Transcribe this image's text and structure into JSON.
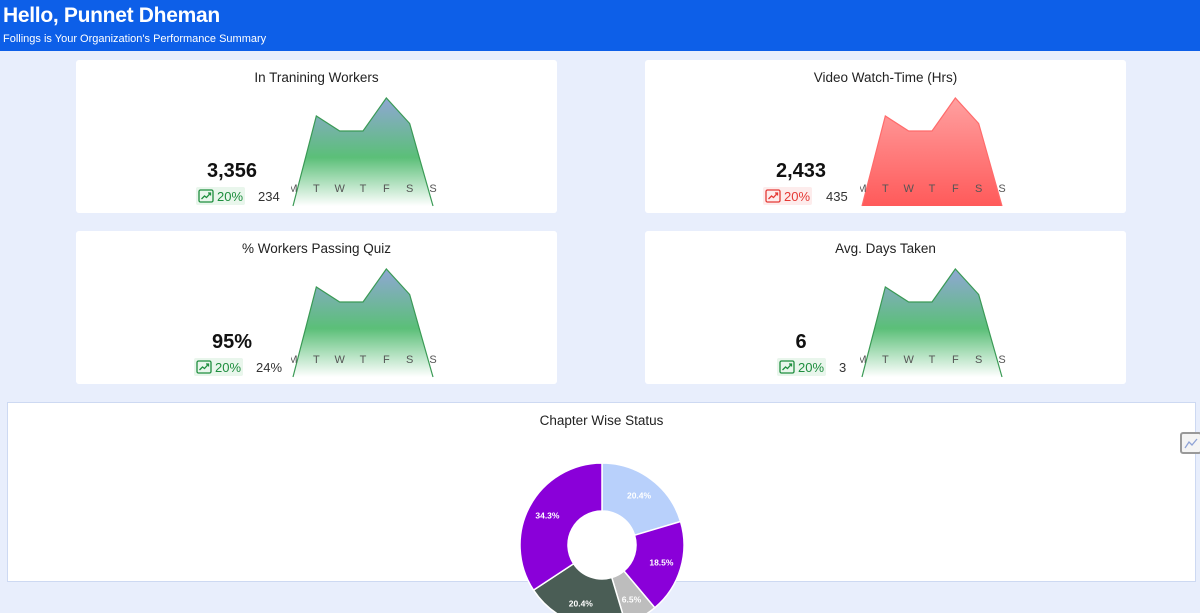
{
  "header": {
    "title": "Hello, Punnet Dheman",
    "subtitle": "Follings is Your Organization's Performance Summary"
  },
  "days": [
    "M",
    "T",
    "W",
    "T",
    "F",
    "S",
    "S"
  ],
  "cards": [
    {
      "title": "In Tranining Workers",
      "value": "3,356",
      "trend": "20%",
      "trend_direction": "up",
      "previous": "234",
      "chart_color": "green",
      "chart_data": {
        "type": "area",
        "x": [
          "M",
          "T",
          "W",
          "T",
          "F",
          "S",
          "S"
        ],
        "values": [
          0,
          60,
          50,
          50,
          72,
          55,
          0
        ]
      }
    },
    {
      "title": "Video Watch-Time (Hrs)",
      "value": "2,433",
      "trend": "20%",
      "trend_direction": "down",
      "previous": "435",
      "chart_color": "red",
      "chart_data": {
        "type": "area",
        "x": [
          "M",
          "T",
          "W",
          "T",
          "F",
          "S",
          "S"
        ],
        "values": [
          0,
          60,
          50,
          50,
          72,
          55,
          0
        ]
      }
    },
    {
      "title": "% Workers Passing Quiz",
      "value": "95%",
      "trend": "20%",
      "trend_direction": "up",
      "previous": "24%",
      "chart_color": "green",
      "chart_data": {
        "type": "area",
        "x": [
          "M",
          "T",
          "W",
          "T",
          "F",
          "S",
          "S"
        ],
        "values": [
          0,
          60,
          50,
          50,
          72,
          55,
          0
        ]
      }
    },
    {
      "title": "Avg. Days Taken",
      "value": "6",
      "trend": "20%",
      "trend_direction": "up",
      "previous": "3",
      "chart_color": "green",
      "chart_data": {
        "type": "area",
        "x": [
          "M",
          "T",
          "W",
          "T",
          "F",
          "S",
          "S"
        ],
        "values": [
          0,
          60,
          50,
          50,
          72,
          55,
          0
        ]
      }
    }
  ],
  "chapter_status": {
    "title": "Chapter Wise Status",
    "chart_data": {
      "type": "pie",
      "slices": [
        {
          "label": "20.4%",
          "value": 20.4,
          "color": "#b8d0fb"
        },
        {
          "label": "18.5%",
          "value": 18.5,
          "color": "#8a00d9"
        },
        {
          "label": "6.5%",
          "value": 6.5,
          "color": "#bdbdbd"
        },
        {
          "label": "20.4%",
          "value": 20.4,
          "color": "#4a5d55"
        },
        {
          "label": "34.3%",
          "value": 34.3,
          "color": "#8a00d9"
        }
      ]
    }
  },
  "colors": {
    "header_bg": "#0d5fe8",
    "page_bg": "#e8eefc",
    "up": "#1e8e3e",
    "down": "#e53935"
  },
  "icons": {
    "trend": "trending-chart-icon",
    "side": "chart-icon"
  }
}
